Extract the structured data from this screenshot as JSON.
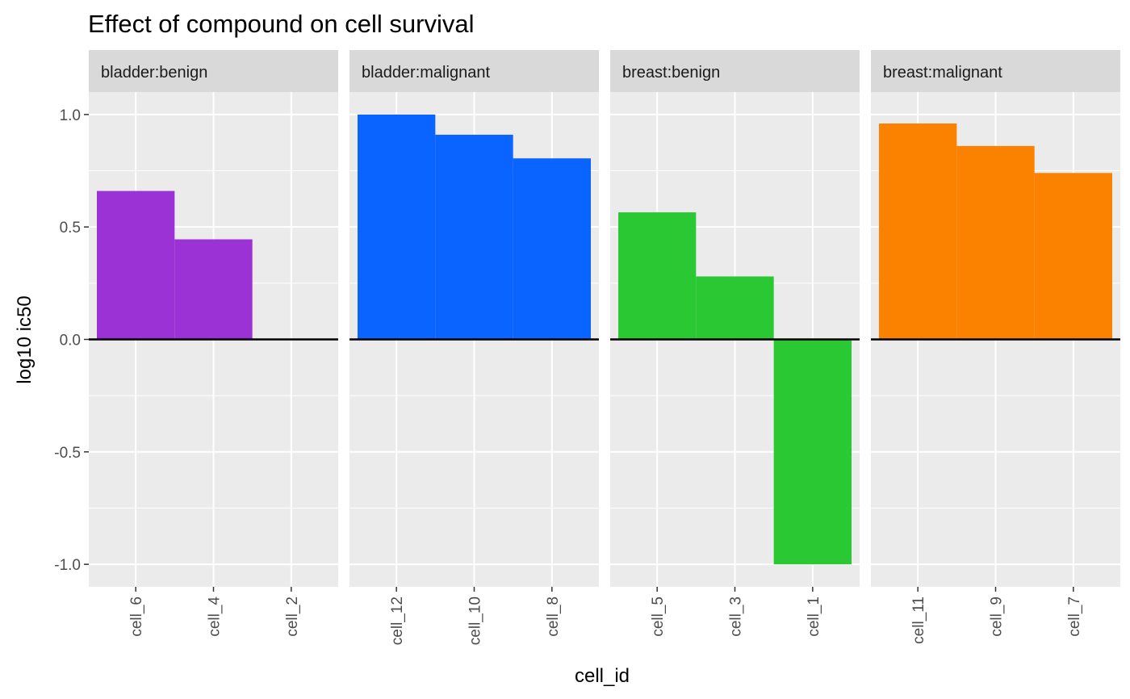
{
  "chart_data": {
    "type": "bar",
    "title": "Effect of compound on cell survival",
    "xlabel": "cell_id",
    "ylabel": "log10 ic50",
    "ylim": [
      -1.1,
      1.1
    ],
    "yticks": [
      -1.0,
      -0.5,
      0.0,
      0.5,
      1.0
    ],
    "ytick_labels": [
      "-1.0",
      "-0.5",
      "0.0",
      "0.5",
      "1.0"
    ],
    "reference_line": 0.0,
    "grid": true,
    "legend": "none",
    "facets": [
      {
        "label": "bladder:benign",
        "color": "#9B32D6",
        "categories": [
          "cell_6",
          "cell_4",
          "cell_2"
        ],
        "values": [
          0.66,
          0.445,
          0.0
        ]
      },
      {
        "label": "bladder:malignant",
        "color": "#0A64FF",
        "categories": [
          "cell_12",
          "cell_10",
          "cell_8"
        ],
        "values": [
          1.0,
          0.91,
          0.805
        ]
      },
      {
        "label": "breast:benign",
        "color": "#2AC832",
        "categories": [
          "cell_5",
          "cell_3",
          "cell_1"
        ],
        "values": [
          0.565,
          0.28,
          -1.0
        ]
      },
      {
        "label": "breast:malignant",
        "color": "#FA8200",
        "categories": [
          "cell_11",
          "cell_9",
          "cell_7"
        ],
        "values": [
          0.96,
          0.86,
          0.74
        ]
      }
    ]
  }
}
